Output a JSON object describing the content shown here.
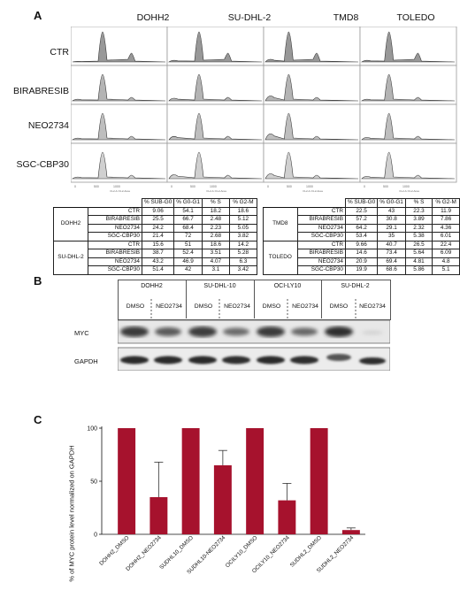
{
  "panel_a": {
    "letter": "A",
    "columns": [
      "DOHH2",
      "SU-DHL-2",
      "TMD8",
      "TOLEDO"
    ],
    "rows": [
      "CTR",
      "BIRABRESIB",
      "NEO2734",
      "SGC-CBP30"
    ],
    "axis_ticks": [
      "0",
      "500",
      "1000"
    ],
    "axis_label": "FL2-A::FL2-Area",
    "table_headers": [
      "% SUB-G0",
      "% G0-G1",
      "% S",
      "% G2-M"
    ],
    "table_left": [
      {
        "group": "DOHH2",
        "rows": [
          {
            "cond": "CTR",
            "vals": [
              "9.06",
              "54.1",
              "18.2",
              "18.6"
            ]
          },
          {
            "cond": "BIRABRESIB",
            "vals": [
              "25.5",
              "66.7",
              "2.48",
              "5.12"
            ]
          },
          {
            "cond": "NEO2734",
            "vals": [
              "24.2",
              "68.4",
              "2.23",
              "5.05"
            ]
          },
          {
            "cond": "SGC-CBP30",
            "vals": [
              "21.4",
              "72",
              "2.68",
              "3.82"
            ]
          }
        ]
      },
      {
        "group": "SU-DHL-2",
        "rows": [
          {
            "cond": "CTR",
            "vals": [
              "15.6",
              "51",
              "18.6",
              "14.2"
            ]
          },
          {
            "cond": "BIRABRESIB",
            "vals": [
              "38.7",
              "52.4",
              "3.51",
              "5.28"
            ]
          },
          {
            "cond": "NEO2734",
            "vals": [
              "43.2",
              "46.9",
              "4.07",
              "6.3"
            ]
          },
          {
            "cond": "SGC-CBP30",
            "vals": [
              "51.4",
              "42",
              "3.1",
              "3.42"
            ]
          }
        ]
      }
    ],
    "table_right": [
      {
        "group": "TMD8",
        "rows": [
          {
            "cond": "CTR",
            "vals": [
              "22.5",
              "43",
              "22.3",
              "11.9"
            ]
          },
          {
            "cond": "BIRABRESIB",
            "vals": [
              "57.2",
              "30.8",
              "3.89",
              "7.86"
            ]
          },
          {
            "cond": "NEO2734",
            "vals": [
              "64.2",
              "29.1",
              "2.32",
              "4.36"
            ]
          },
          {
            "cond": "SGC-CBP30",
            "vals": [
              "53.4",
              "35",
              "5.38",
              "6.01"
            ]
          }
        ]
      },
      {
        "group": "TOLEDO",
        "rows": [
          {
            "cond": "CTR",
            "vals": [
              "9.66",
              "40.7",
              "26.5",
              "22.4"
            ]
          },
          {
            "cond": "BIRABRESIB",
            "vals": [
              "14.6",
              "73.4",
              "5.64",
              "6.09"
            ]
          },
          {
            "cond": "NEO2734",
            "vals": [
              "20.9",
              "69.4",
              "4.81",
              "4.8"
            ]
          },
          {
            "cond": "SGC-CBP30",
            "vals": [
              "19.9",
              "68.6",
              "5.86",
              "5.1"
            ]
          }
        ]
      }
    ]
  },
  "panel_b": {
    "letter": "B",
    "cell_lines": [
      "DOHH2",
      "SU-DHL-10",
      "OCI-LY10",
      "SU-DHL-2"
    ],
    "treatments": [
      "DMSO",
      "NEO2734"
    ],
    "proteins": [
      "MYC",
      "GAPDH"
    ]
  },
  "panel_c": {
    "letter": "C",
    "colors": {
      "bar": "#a6122d",
      "error": "#333333"
    }
  },
  "chart_data": {
    "type": "bar",
    "categories": [
      "DOHH2_DMSO",
      "DOHH2_NEO2734",
      "SUDHL10_DMSO",
      "SUDHL10-NEO2734",
      "OCILY10_DMSO",
      "OCILY10_NEO2734",
      "SUDHL2_DMSO",
      "SUDHL2_NEO2734"
    ],
    "values": [
      100,
      35,
      100,
      65,
      100,
      32,
      100,
      4
    ],
    "error_upper": [
      0,
      33,
      0,
      14,
      0,
      16,
      0,
      2
    ],
    "ylabel": "% of MYC protein level normalized on GAPDH",
    "ylim": [
      0,
      100
    ],
    "yticks": [
      0,
      50,
      100
    ],
    "grid": false,
    "legend": "none"
  }
}
